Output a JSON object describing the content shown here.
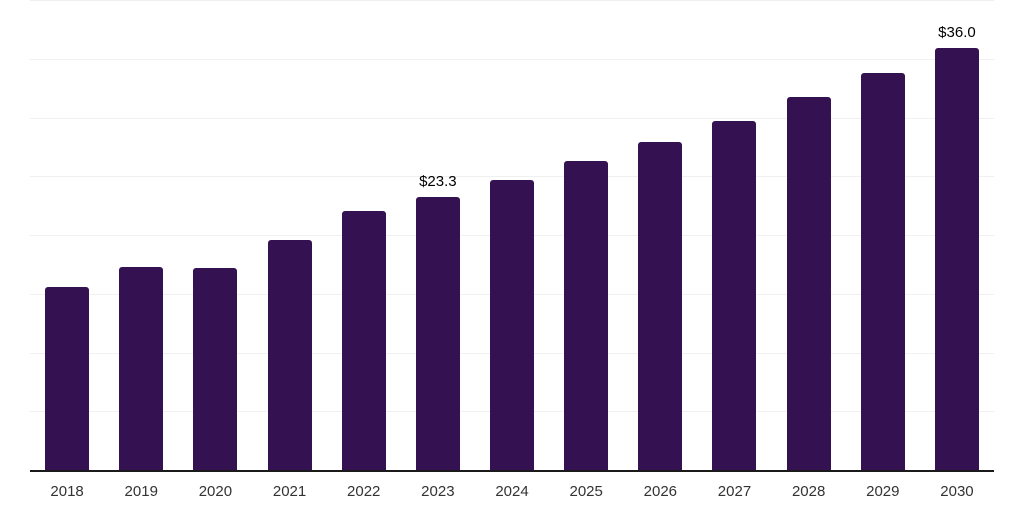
{
  "chart_data": {
    "type": "bar",
    "title": "",
    "xlabel": "",
    "ylabel": "",
    "categories": [
      "2018",
      "2019",
      "2020",
      "2021",
      "2022",
      "2023",
      "2024",
      "2025",
      "2026",
      "2027",
      "2028",
      "2029",
      "2030"
    ],
    "values": [
      15.7,
      17.4,
      17.3,
      19.7,
      22.1,
      23.3,
      24.8,
      26.4,
      28.0,
      29.8,
      31.8,
      33.9,
      36.0
    ],
    "data_labels": {
      "2023": "$23.3",
      "2030": "$36.0"
    },
    "ylim": [
      0,
      40
    ],
    "gridline_step": 5,
    "grid": "horizontal",
    "legend": "none",
    "y_axis_tick_labels_visible": false,
    "colors": {
      "bar": "#341150",
      "background": "#ffffff",
      "gridline": "#f0f0f0",
      "axis_line": "#1a1a1a",
      "tick_label": "#333333",
      "data_label": "#000000"
    }
  }
}
